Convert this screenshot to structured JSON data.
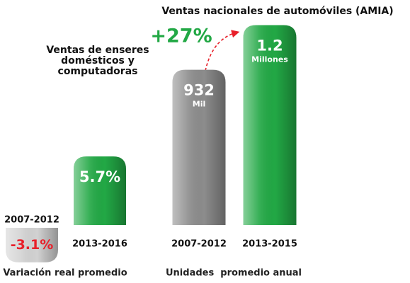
{
  "chart_data": [
    {
      "type": "bar",
      "title": "Ventas de enseres domésticos y computadoras",
      "categories": [
        "2007-2012",
        "2013-2016"
      ],
      "values": [
        -3.1,
        5.7
      ],
      "value_labels": [
        "-3.1%",
        "5.7%"
      ],
      "colors": [
        "#d2d2d2",
        "#22a845"
      ],
      "xlabel": "Variación real promedio",
      "ylim": [
        -3.2,
        13
      ]
    },
    {
      "type": "bar",
      "title": "Ventas nacionales de automóviles (AMIA)",
      "categories": [
        "2007-2012",
        "2013-2015"
      ],
      "values": [
        932000,
        1200000
      ],
      "value_labels": [
        "932",
        "1.2"
      ],
      "value_units": [
        "Mil",
        "Millones"
      ],
      "colors": [
        "#8c8c8c",
        "#22a845"
      ],
      "annotation": "+27%",
      "xlabel": "Unidades  promedio anual",
      "ylim": [
        0,
        1300000
      ]
    }
  ]
}
